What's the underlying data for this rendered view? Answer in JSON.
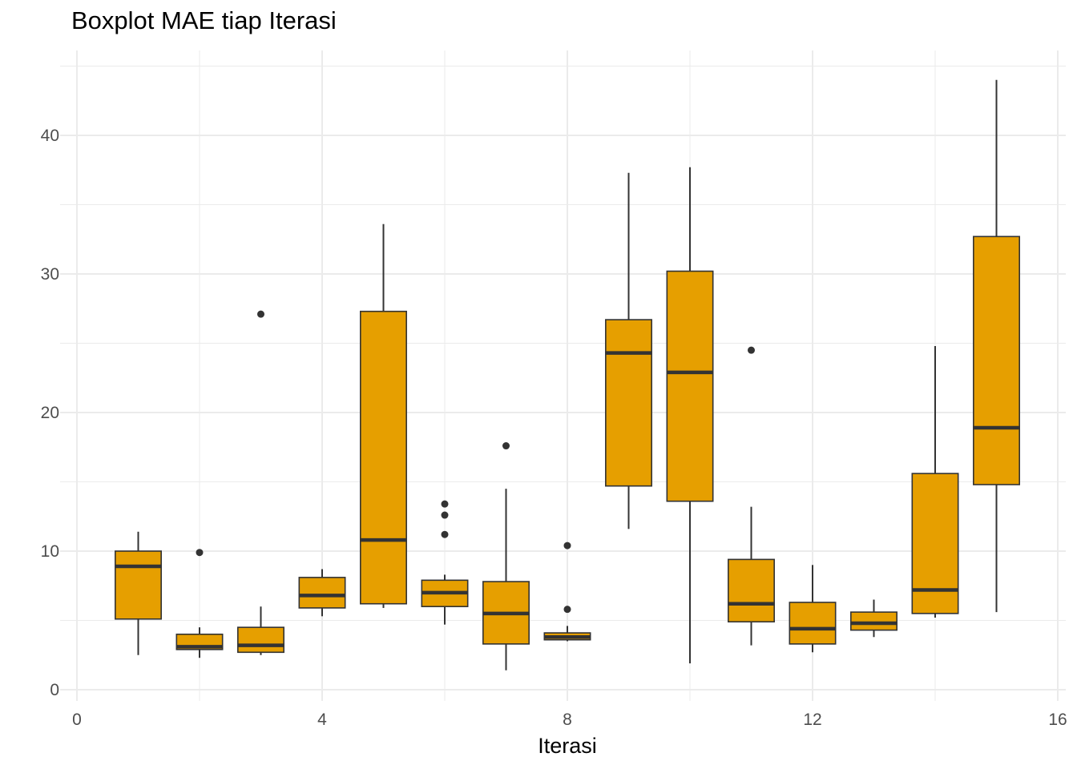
{
  "chart_data": {
    "type": "boxplot",
    "title": "Boxplot MAE tiap Iterasi",
    "xlabel": "Iterasi",
    "ylabel": "",
    "xlim": [
      0,
      16
    ],
    "ylim": [
      0,
      45
    ],
    "x_ticks": [
      0,
      4,
      8,
      12,
      16
    ],
    "y_ticks": [
      0,
      10,
      20,
      30,
      40
    ],
    "grid": true,
    "legend": "none",
    "box_fill": "#E69F00",
    "line_color": "#333333",
    "grid_color": "#EBEBEB",
    "boxes": [
      {
        "x": 1,
        "whisker_low": 2.5,
        "q1": 5.1,
        "median": 8.9,
        "q3": 10.0,
        "whisker_high": 11.4,
        "outliers": []
      },
      {
        "x": 2,
        "whisker_low": 2.3,
        "q1": 2.9,
        "median": 3.1,
        "q3": 4.0,
        "whisker_high": 4.5,
        "outliers": [
          9.9
        ]
      },
      {
        "x": 3,
        "whisker_low": 2.5,
        "q1": 2.7,
        "median": 3.2,
        "q3": 4.5,
        "whisker_high": 6.0,
        "outliers": [
          27.1
        ]
      },
      {
        "x": 4,
        "whisker_low": 5.3,
        "q1": 5.9,
        "median": 6.8,
        "q3": 8.1,
        "whisker_high": 8.7,
        "outliers": []
      },
      {
        "x": 5,
        "whisker_low": 5.9,
        "q1": 6.2,
        "median": 10.8,
        "q3": 27.3,
        "whisker_high": 33.6,
        "outliers": []
      },
      {
        "x": 6,
        "whisker_low": 4.7,
        "q1": 6.0,
        "median": 7.0,
        "q3": 7.9,
        "whisker_high": 8.3,
        "outliers": [
          11.2,
          12.6,
          13.4
        ]
      },
      {
        "x": 7,
        "whisker_low": 1.4,
        "q1": 3.3,
        "median": 5.5,
        "q3": 7.8,
        "whisker_high": 14.5,
        "outliers": [
          17.6
        ]
      },
      {
        "x": 8,
        "whisker_low": 3.5,
        "q1": 3.6,
        "median": 3.8,
        "q3": 4.1,
        "whisker_high": 4.6,
        "outliers": [
          5.8,
          10.4
        ]
      },
      {
        "x": 9,
        "whisker_low": 11.6,
        "q1": 14.7,
        "median": 24.3,
        "q3": 26.7,
        "whisker_high": 37.3,
        "outliers": []
      },
      {
        "x": 10,
        "whisker_low": 1.9,
        "q1": 13.6,
        "median": 22.9,
        "q3": 30.2,
        "whisker_high": 37.7,
        "outliers": []
      },
      {
        "x": 11,
        "whisker_low": 3.2,
        "q1": 4.9,
        "median": 6.2,
        "q3": 9.4,
        "whisker_high": 13.2,
        "outliers": [
          24.5
        ]
      },
      {
        "x": 12,
        "whisker_low": 2.7,
        "q1": 3.3,
        "median": 4.4,
        "q3": 6.3,
        "whisker_high": 9.0,
        "outliers": []
      },
      {
        "x": 13,
        "whisker_low": 3.8,
        "q1": 4.3,
        "median": 4.8,
        "q3": 5.6,
        "whisker_high": 6.5,
        "outliers": []
      },
      {
        "x": 14,
        "whisker_low": 5.2,
        "q1": 5.5,
        "median": 7.2,
        "q3": 15.6,
        "whisker_high": 24.8,
        "outliers": []
      },
      {
        "x": 15,
        "whisker_low": 5.6,
        "q1": 14.8,
        "median": 18.9,
        "q3": 32.7,
        "whisker_high": 44.0,
        "outliers": []
      }
    ]
  }
}
